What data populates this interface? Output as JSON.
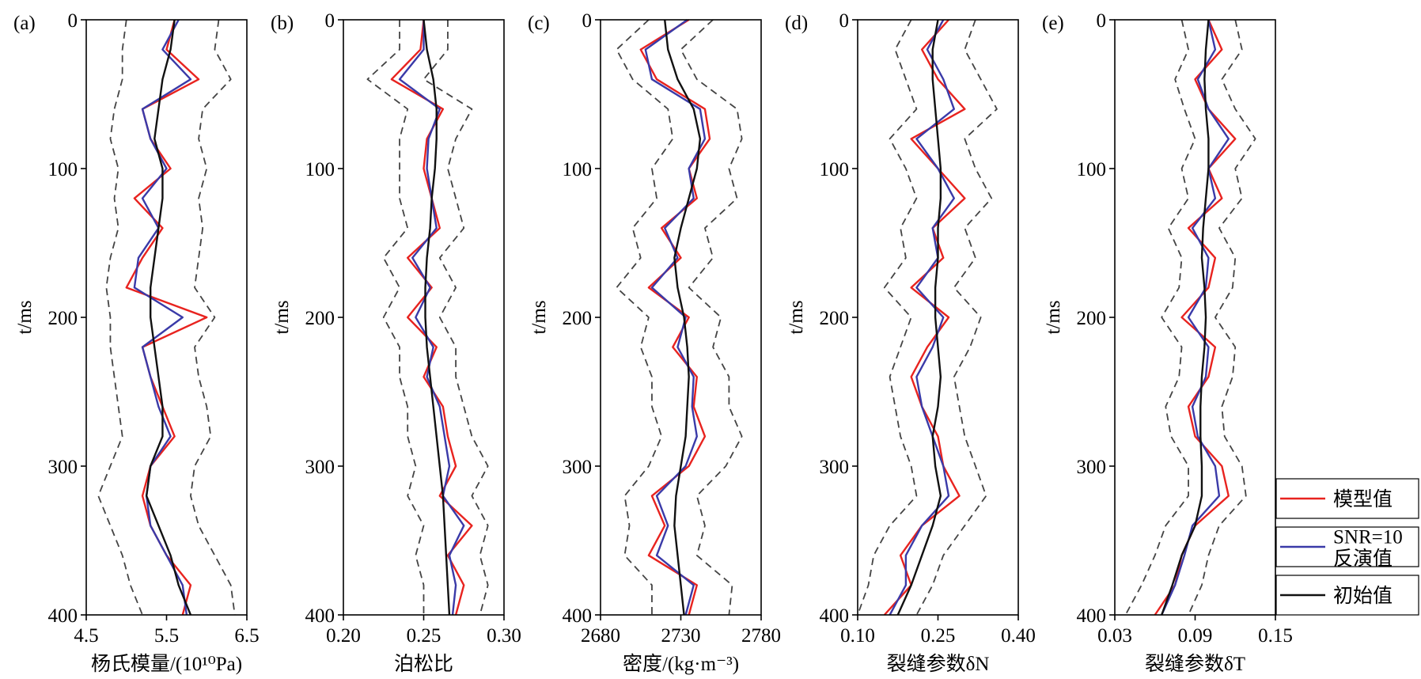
{
  "chart_data": [
    {
      "type": "line",
      "panel_label": "(a)",
      "x_label": "杨氏模量/(10¹⁰Pa)",
      "y_label": "t/ms",
      "legend": "right",
      "t": [
        0,
        20,
        40,
        60,
        80,
        100,
        120,
        140,
        160,
        180,
        200,
        220,
        240,
        260,
        280,
        300,
        320,
        340,
        360,
        380,
        400
      ],
      "xlim": [
        4.5,
        6.5
      ],
      "xticks": [
        4.5,
        5.5,
        6.5
      ],
      "ylim": [
        0,
        400
      ],
      "yticks": [
        0,
        100,
        200,
        300,
        400
      ],
      "y_inverted": true,
      "series": [
        {
          "name": "模型值",
          "color": "#e8231f",
          "values": [
            5.6,
            5.5,
            5.9,
            5.2,
            5.3,
            5.55,
            5.1,
            5.45,
            5.2,
            5.0,
            6.0,
            5.2,
            5.3,
            5.45,
            5.6,
            5.3,
            5.2,
            5.3,
            5.5,
            5.8,
            5.7
          ]
        },
        {
          "name": "SNR=10\n反演值",
          "color": "#3a3aa8",
          "values": [
            5.65,
            5.45,
            5.8,
            5.2,
            5.3,
            5.5,
            5.2,
            5.4,
            5.15,
            5.1,
            5.7,
            5.2,
            5.3,
            5.4,
            5.55,
            5.3,
            5.25,
            5.3,
            5.5,
            5.7,
            5.75
          ]
        },
        {
          "name": "初始值",
          "color": "#111111",
          "values": [
            5.6,
            5.55,
            5.45,
            5.4,
            5.35,
            5.45,
            5.45,
            5.4,
            5.35,
            5.3,
            5.3,
            5.35,
            5.4,
            5.45,
            5.45,
            5.3,
            5.25,
            5.4,
            5.55,
            5.65,
            5.8
          ]
        },
        {
          "color": "#444444",
          "dashed": true,
          "values": [
            5.0,
            4.95,
            4.95,
            4.85,
            4.8,
            4.9,
            4.85,
            4.9,
            4.8,
            4.75,
            4.8,
            4.8,
            4.85,
            4.9,
            4.95,
            4.8,
            4.65,
            4.8,
            4.95,
            5.05,
            5.2
          ]
        },
        {
          "color": "#444444",
          "dashed": true,
          "values": [
            6.15,
            6.1,
            6.3,
            5.95,
            5.9,
            6.0,
            5.9,
            5.95,
            5.9,
            5.85,
            6.1,
            5.85,
            5.9,
            6.0,
            6.05,
            5.85,
            5.8,
            5.9,
            6.1,
            6.3,
            6.35
          ]
        }
      ]
    },
    {
      "type": "line",
      "panel_label": "(b)",
      "x_label": "泊松比",
      "y_label": "t/ms",
      "t": [
        0,
        20,
        40,
        60,
        80,
        100,
        120,
        140,
        160,
        180,
        200,
        220,
        240,
        260,
        280,
        300,
        320,
        340,
        360,
        380,
        400
      ],
      "xlim": [
        0.2,
        0.3
      ],
      "xticks": [
        {
          "value": 0.2,
          "label": "0.20"
        },
        {
          "value": 0.25,
          "label": "0.25"
        },
        {
          "value": 0.3,
          "label": "0.30"
        }
      ],
      "ylim": [
        0,
        400
      ],
      "yticks": [
        0,
        100,
        200,
        300,
        400
      ],
      "y_inverted": true,
      "series": [
        {
          "color": "#e8231f",
          "values": [
            0.25,
            0.248,
            0.23,
            0.262,
            0.252,
            0.25,
            0.255,
            0.26,
            0.24,
            0.255,
            0.24,
            0.258,
            0.25,
            0.262,
            0.265,
            0.27,
            0.26,
            0.28,
            0.265,
            0.275,
            0.27
          ]
        },
        {
          "color": "#3a3aa8",
          "values": [
            0.25,
            0.25,
            0.235,
            0.26,
            0.253,
            0.252,
            0.255,
            0.258,
            0.243,
            0.254,
            0.245,
            0.256,
            0.252,
            0.26,
            0.263,
            0.266,
            0.262,
            0.275,
            0.266,
            0.27,
            0.268
          ]
        },
        {
          "color": "#111111",
          "values": [
            0.25,
            0.252,
            0.256,
            0.258,
            0.258,
            0.257,
            0.255,
            0.254,
            0.252,
            0.251,
            0.251,
            0.252,
            0.254,
            0.256,
            0.258,
            0.26,
            0.262,
            0.263,
            0.264,
            0.265,
            0.266
          ]
        },
        {
          "color": "#444444",
          "dashed": true,
          "values": [
            0.235,
            0.235,
            0.215,
            0.24,
            0.235,
            0.235,
            0.235,
            0.24,
            0.225,
            0.235,
            0.225,
            0.235,
            0.235,
            0.24,
            0.24,
            0.245,
            0.24,
            0.25,
            0.245,
            0.25,
            0.25
          ]
        },
        {
          "color": "#444444",
          "dashed": true,
          "values": [
            0.265,
            0.265,
            0.25,
            0.28,
            0.27,
            0.265,
            0.27,
            0.275,
            0.26,
            0.27,
            0.26,
            0.27,
            0.27,
            0.275,
            0.28,
            0.29,
            0.28,
            0.29,
            0.285,
            0.29,
            0.285
          ]
        }
      ]
    },
    {
      "type": "line",
      "panel_label": "(c)",
      "x_label": "密度/(kg·m⁻³)",
      "y_label": "t/ms",
      "t": [
        0,
        20,
        40,
        60,
        80,
        100,
        120,
        140,
        160,
        180,
        200,
        220,
        240,
        260,
        280,
        300,
        320,
        340,
        360,
        380,
        400
      ],
      "xlim": [
        2680,
        2780
      ],
      "xticks": [
        2680,
        2730,
        2780
      ],
      "ylim": [
        0,
        400
      ],
      "yticks": [
        0,
        100,
        200,
        300,
        400
      ],
      "y_inverted": true,
      "series": [
        {
          "color": "#e8231f",
          "values": [
            2735,
            2705,
            2715,
            2745,
            2748,
            2735,
            2740,
            2718,
            2730,
            2710,
            2735,
            2725,
            2740,
            2738,
            2745,
            2735,
            2712,
            2720,
            2710,
            2740,
            2735
          ]
        },
        {
          "color": "#3a3aa8",
          "values": [
            2734,
            2708,
            2712,
            2742,
            2745,
            2735,
            2738,
            2720,
            2728,
            2712,
            2733,
            2728,
            2738,
            2737,
            2740,
            2733,
            2715,
            2722,
            2715,
            2738,
            2733
          ]
        },
        {
          "color": "#111111",
          "values": [
            2720,
            2722,
            2728,
            2738,
            2742,
            2740,
            2735,
            2730,
            2726,
            2728,
            2732,
            2734,
            2735,
            2734,
            2733,
            2730,
            2727,
            2726,
            2728,
            2730,
            2732
          ]
        },
        {
          "color": "#444444",
          "dashed": true,
          "values": [
            2710,
            2690,
            2700,
            2722,
            2725,
            2712,
            2715,
            2700,
            2705,
            2690,
            2710,
            2705,
            2712,
            2712,
            2718,
            2710,
            2695,
            2698,
            2695,
            2712,
            2712
          ]
        },
        {
          "color": "#444444",
          "dashed": true,
          "values": [
            2750,
            2730,
            2740,
            2765,
            2768,
            2760,
            2765,
            2745,
            2750,
            2735,
            2755,
            2750,
            2760,
            2760,
            2768,
            2758,
            2740,
            2745,
            2740,
            2762,
            2760
          ]
        }
      ]
    },
    {
      "type": "line",
      "panel_label": "(d)",
      "x_label": "裂缝参数δN",
      "y_label": "t/ms",
      "t": [
        0,
        20,
        40,
        60,
        80,
        100,
        120,
        140,
        160,
        180,
        200,
        220,
        240,
        260,
        280,
        300,
        320,
        340,
        360,
        380,
        400
      ],
      "xlim": [
        0.1,
        0.4
      ],
      "xticks": [
        {
          "value": 0.1,
          "label": "0.10"
        },
        {
          "value": 0.25,
          "label": "0.25"
        },
        {
          "value": 0.4,
          "label": "0.40"
        }
      ],
      "ylim": [
        0,
        400
      ],
      "yticks": [
        0,
        100,
        200,
        300,
        400
      ],
      "y_inverted": true,
      "series": [
        {
          "color": "#e8231f",
          "values": [
            0.27,
            0.22,
            0.25,
            0.3,
            0.2,
            0.25,
            0.3,
            0.24,
            0.26,
            0.2,
            0.27,
            0.23,
            0.2,
            0.22,
            0.25,
            0.26,
            0.29,
            0.22,
            0.18,
            0.2,
            0.15
          ]
        },
        {
          "color": "#3a3aa8",
          "values": [
            0.26,
            0.23,
            0.26,
            0.28,
            0.21,
            0.25,
            0.28,
            0.24,
            0.25,
            0.21,
            0.26,
            0.24,
            0.21,
            0.22,
            0.24,
            0.26,
            0.27,
            0.22,
            0.19,
            0.19,
            0.16
          ]
        },
        {
          "color": "#111111",
          "values": [
            0.25,
            0.24,
            0.24,
            0.245,
            0.25,
            0.255,
            0.255,
            0.25,
            0.25,
            0.245,
            0.245,
            0.25,
            0.255,
            0.25,
            0.24,
            0.245,
            0.255,
            0.24,
            0.22,
            0.2,
            0.175
          ]
        },
        {
          "color": "#444444",
          "dashed": true,
          "values": [
            0.2,
            0.17,
            0.19,
            0.21,
            0.16,
            0.19,
            0.21,
            0.18,
            0.19,
            0.15,
            0.2,
            0.18,
            0.16,
            0.17,
            0.18,
            0.2,
            0.21,
            0.16,
            0.13,
            0.12,
            0.1
          ]
        },
        {
          "color": "#444444",
          "dashed": true,
          "values": [
            0.32,
            0.3,
            0.33,
            0.36,
            0.3,
            0.32,
            0.35,
            0.3,
            0.32,
            0.28,
            0.33,
            0.31,
            0.28,
            0.29,
            0.3,
            0.32,
            0.34,
            0.3,
            0.26,
            0.24,
            0.21
          ]
        }
      ]
    },
    {
      "type": "line",
      "panel_label": "(e)",
      "x_label": "裂缝参数δT",
      "y_label": "t/ms",
      "t": [
        0,
        20,
        40,
        60,
        80,
        100,
        120,
        140,
        160,
        180,
        200,
        220,
        240,
        260,
        280,
        300,
        320,
        340,
        360,
        380,
        400
      ],
      "xlim": [
        0.03,
        0.15
      ],
      "xticks": [
        0.03,
        0.09,
        0.15
      ],
      "ylim": [
        0,
        400
      ],
      "yticks": [
        0,
        100,
        200,
        300,
        400
      ],
      "y_inverted": true,
      "series": [
        {
          "color": "#e8231f",
          "values": [
            0.1,
            0.11,
            0.09,
            0.1,
            0.12,
            0.1,
            0.11,
            0.085,
            0.105,
            0.1,
            0.08,
            0.105,
            0.1,
            0.085,
            0.09,
            0.11,
            0.115,
            0.09,
            0.08,
            0.075,
            0.06
          ]
        },
        {
          "color": "#3a3aa8",
          "values": [
            0.1,
            0.105,
            0.092,
            0.1,
            0.115,
            0.1,
            0.105,
            0.088,
            0.1,
            0.098,
            0.085,
            0.1,
            0.098,
            0.088,
            0.092,
            0.105,
            0.108,
            0.088,
            0.082,
            0.075,
            0.065
          ]
        },
        {
          "color": "#111111",
          "values": [
            0.1,
            0.098,
            0.097,
            0.098,
            0.1,
            0.1,
            0.098,
            0.096,
            0.095,
            0.097,
            0.098,
            0.097,
            0.095,
            0.094,
            0.094,
            0.095,
            0.095,
            0.09,
            0.08,
            0.073,
            0.065
          ]
        },
        {
          "color": "#444444",
          "dashed": true,
          "values": [
            0.08,
            0.085,
            0.075,
            0.082,
            0.09,
            0.08,
            0.085,
            0.07,
            0.08,
            0.078,
            0.065,
            0.08,
            0.078,
            0.068,
            0.072,
            0.085,
            0.085,
            0.068,
            0.06,
            0.05,
            0.038
          ]
        },
        {
          "color": "#444444",
          "dashed": true,
          "values": [
            0.12,
            0.125,
            0.11,
            0.12,
            0.135,
            0.12,
            0.125,
            0.108,
            0.12,
            0.118,
            0.105,
            0.12,
            0.118,
            0.11,
            0.112,
            0.125,
            0.128,
            0.108,
            0.1,
            0.095,
            0.085
          ]
        }
      ]
    }
  ]
}
